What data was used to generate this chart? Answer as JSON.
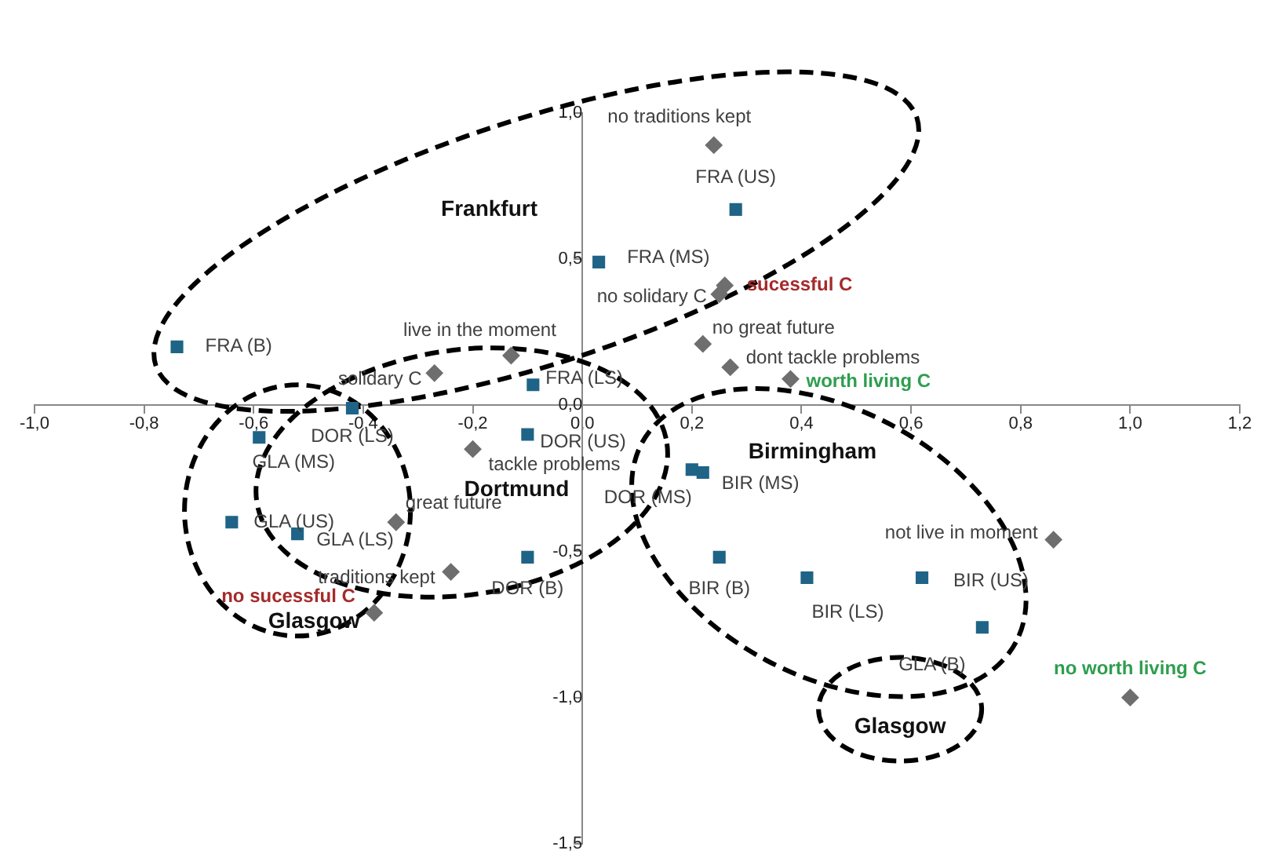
{
  "chart_data": {
    "type": "scatter",
    "xlim": [
      -1.0,
      1.2
    ],
    "ylim": [
      -1.5,
      1.0
    ],
    "xticks": [
      {
        "value": -1.0,
        "label": "-1,0"
      },
      {
        "value": -0.8,
        "label": "-0,8"
      },
      {
        "value": -0.6,
        "label": "-0,6"
      },
      {
        "value": -0.4,
        "label": "-0,4"
      },
      {
        "value": -0.2,
        "label": "-0,2"
      },
      {
        "value": 0,
        "label": "0,0"
      },
      {
        "value": 0.2,
        "label": "0,2"
      },
      {
        "value": 0.4,
        "label": "0,4"
      },
      {
        "value": 0.6,
        "label": "0,6"
      },
      {
        "value": 0.8,
        "label": "0,8"
      },
      {
        "value": 1.0,
        "label": "1,0"
      },
      {
        "value": 1.2,
        "label": "1,2"
      }
    ],
    "yticks": [
      {
        "value": -1.5,
        "label": "-1,5"
      },
      {
        "value": -1.0,
        "label": "-1,0"
      },
      {
        "value": -0.5,
        "label": "-0,5"
      },
      {
        "value": 0,
        "label": "0,0"
      },
      {
        "value": 0.5,
        "label": "0,5"
      },
      {
        "value": 1.0,
        "label": "1,0"
      }
    ],
    "grid": false,
    "legend": false,
    "series": [
      {
        "color": "#1f6487",
        "marker": "square",
        "x": [
          -0.74,
          0.28,
          0.03,
          -0.09,
          -0.42,
          -0.1,
          -0.59,
          -0.64,
          -0.52,
          -0.1,
          0.2,
          0.22,
          0.25,
          0.41,
          0.62,
          0.73
        ],
        "values": [
          0.2,
          0.67,
          0.49,
          0.07,
          -0.01,
          -0.1,
          -0.11,
          -0.4,
          -0.44,
          -0.52,
          -0.22,
          -0.23,
          -0.52,
          -0.59,
          -0.59,
          -0.76
        ],
        "value_labels": [
          "FRA (B)",
          "FRA (US)",
          "FRA (MS)",
          "FRA (LS)",
          "DOR (LS)",
          "DOR (US)",
          "GLA (MS)",
          "GLA (US)",
          "GLA (LS)",
          "DOR (B)",
          "DOR (MS)",
          "BIR (MS)",
          "BIR (B)",
          "BIR (LS)",
          "BIR (US)",
          "GLA (B)"
        ]
      },
      {
        "color": "#6e6e6e",
        "marker": "diamond",
        "x": [
          0.24,
          0.26,
          0.25,
          0.22,
          0.27,
          0.38,
          -0.13,
          -0.27,
          -0.2,
          -0.34,
          -0.24,
          -0.38,
          0.86,
          1.0
        ],
        "values": [
          0.89,
          0.41,
          0.38,
          0.21,
          0.13,
          0.09,
          0.17,
          0.11,
          -0.15,
          -0.4,
          -0.57,
          -0.71,
          -0.46,
          -1.0
        ],
        "value_labels": [
          "no traditions kept",
          "sucessful C",
          "no solidary C",
          "no great future",
          "dont tackle problems",
          "worth living C",
          "live in the moment",
          "solidary C",
          "tackle problems",
          "great future",
          "traditions kept",
          "no sucessful C",
          "not live in moment",
          "no worth living C"
        ]
      }
    ],
    "annotations": [
      "Frankfurt",
      "Dortmund",
      "Glasgow",
      "Birmingham",
      "Glasgow"
    ]
  }
}
